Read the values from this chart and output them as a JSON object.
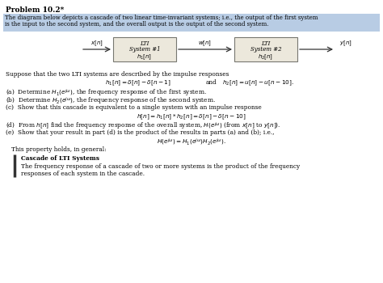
{
  "title": "Problem 10.2*",
  "highlight_text1": "The diagram below depicts a cascade of two linear time-invariant systems; i.e., the output of the first system",
  "highlight_text2": "is the input to the second system, and the overall output is the output of the second system.",
  "suppose_text": "Suppose that the two LTI systems are described by the impulse responses",
  "part_a": "(a)  Determine $H_1(e^{j\\omega})$, the frequency response of the first system.",
  "part_b": "(b)  Determine $H_2(e^{j\\omega})$, the frequency response of the second system.",
  "part_c": "(c)  Show that this cascade is equivalent to a single system with an impulse response",
  "part_d": "(d)  From $h[n]$ find the frequency response of the overall system, $H(e^{j\\omega})$ (from $x[n]$ to $y[n]$).",
  "part_e": "(e)  Show that your result in part (d) is the product of the results in parts (a) and (b); i.e.,",
  "this_property": "This property holds, in general:",
  "cascade_title": "Cascade of LTI Systems",
  "cascade_text1": "The frequency response of a cascade of two or more systems is the product of the frequency",
  "cascade_text2": "responses of each system in the cascade.",
  "bg_color": "#ffffff",
  "highlight_color": "#b8cce4",
  "text_color": "#000000"
}
